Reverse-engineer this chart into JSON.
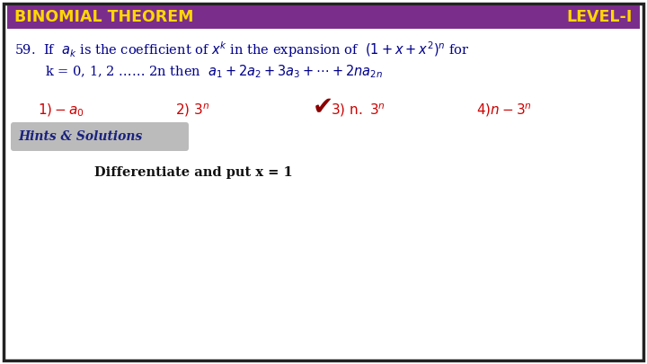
{
  "title_left": "BINOMIAL THEOREM",
  "title_right": "LEVEL-I",
  "header_bg": "#7B2D8B",
  "header_text_color": "#FFD700",
  "outer_bg": "#FFFFFF",
  "border_color": "#222222",
  "question_color": "#00008B",
  "options_color": "#CC0000",
  "hints_bg": "#BBBBBB",
  "hints_text_color": "#1A237E",
  "diff_text_color": "#111111",
  "checkmark_color": "#8B0000",
  "figsize": [
    7.2,
    4.05
  ],
  "dpi": 100
}
